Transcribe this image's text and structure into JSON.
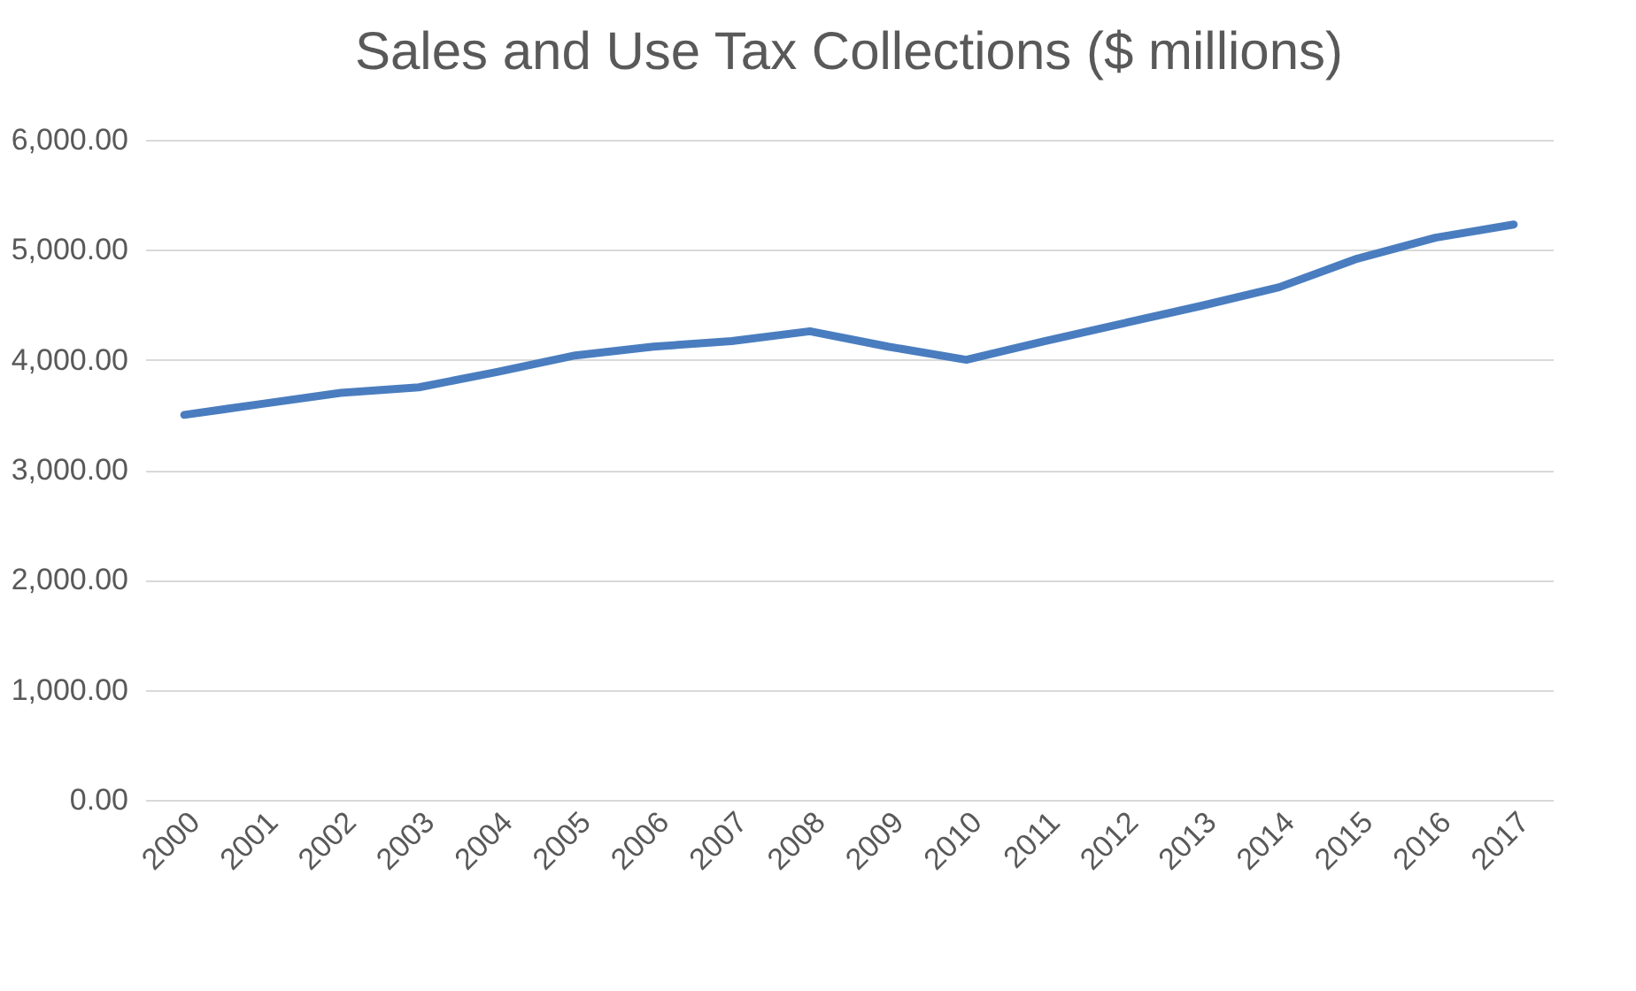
{
  "chart_data": {
    "type": "line",
    "title": "Sales and Use Tax Collections ($ millions)",
    "categories": [
      "2000",
      "2001",
      "2002",
      "2003",
      "2004",
      "2005",
      "2006",
      "2007",
      "2008",
      "2009",
      "2010",
      "2011",
      "2012",
      "2013",
      "2014",
      "2015",
      "2016",
      "2017"
    ],
    "series": [
      {
        "color": "#4a7dbf",
        "values": [
          3500,
          3600,
          3700,
          3750,
          3890,
          4040,
          4120,
          4170,
          4260,
          4120,
          4000,
          4170,
          4330,
          4490,
          4660,
          4920,
          5110,
          5230
        ]
      }
    ],
    "ylim": [
      0,
      6000
    ],
    "yticks": [
      {
        "value": 0,
        "label": "0.00"
      },
      {
        "value": 1000,
        "label": "1,000.00"
      },
      {
        "value": 2000,
        "label": "2,000.00"
      },
      {
        "value": 3000,
        "label": "3,000.00"
      },
      {
        "value": 4000,
        "label": "4,000.00"
      },
      {
        "value": 5000,
        "label": "5,000.00"
      },
      {
        "value": 6000,
        "label": "6,000.00"
      }
    ],
    "grid": "y",
    "legend": false,
    "marker": "none",
    "line_style": "solid"
  }
}
